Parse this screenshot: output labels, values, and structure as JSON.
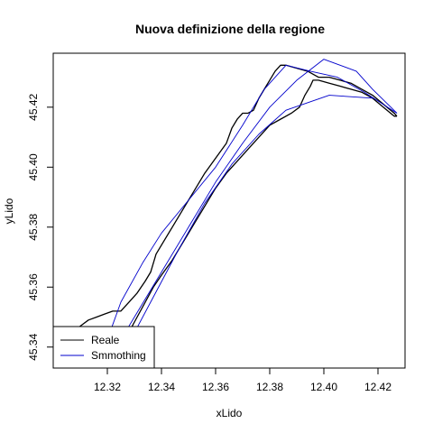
{
  "chart_data": {
    "type": "line",
    "title": "Nuova definizione della regione",
    "xlabel": "xLido",
    "ylabel": "yLido",
    "xlim": [
      12.3,
      12.43
    ],
    "ylim": [
      45.333,
      45.438
    ],
    "x_ticks": [
      12.32,
      12.34,
      12.36,
      12.38,
      12.4,
      12.42
    ],
    "x_tick_labels": [
      "12.32",
      "12.34",
      "12.36",
      "12.38",
      "12.40",
      "12.42"
    ],
    "y_ticks": [
      45.34,
      45.36,
      45.38,
      45.4,
      45.42
    ],
    "y_tick_labels": [
      "45.34",
      "45.36",
      "45.38",
      "45.40",
      "45.42"
    ],
    "grid": false,
    "legend_position": "bottom-left",
    "series": [
      {
        "name": "Reale",
        "color": "#000000",
        "segments": [
          {
            "x": [
              12.3,
              12.305,
              12.31,
              12.313,
              12.316,
              12.319,
              12.322,
              12.325,
              12.328,
              12.331,
              12.334,
              12.336,
              12.338,
              12.34,
              12.344,
              12.348,
              12.352,
              12.356,
              12.36,
              12.364,
              12.366,
              12.368,
              12.37,
              12.372,
              12.374,
              12.376,
              12.378,
              12.38,
              12.382,
              12.384,
              12.386,
              12.39,
              12.394,
              12.398,
              12.402,
              12.406,
              12.41,
              12.414,
              12.418,
              12.422,
              12.426,
              12.427
            ],
            "y": [
              45.34,
              45.343,
              45.347,
              45.349,
              45.35,
              45.351,
              45.352,
              45.352,
              45.355,
              45.358,
              45.362,
              45.365,
              45.371,
              45.374,
              45.38,
              45.386,
              45.392,
              45.398,
              45.403,
              45.408,
              45.413,
              45.416,
              45.418,
              45.418,
              45.419,
              45.423,
              45.426,
              45.429,
              45.432,
              45.434,
              45.434,
              45.433,
              45.432,
              45.43,
              45.43,
              45.429,
              45.428,
              45.426,
              45.424,
              45.421,
              45.418,
              45.417
            ]
          },
          {
            "x": [
              12.325,
              12.326,
              12.327,
              12.328,
              12.331,
              12.334,
              12.337,
              12.34,
              12.344,
              12.348,
              12.352,
              12.356,
              12.36,
              12.364,
              12.368,
              12.372,
              12.376,
              12.38,
              12.384,
              12.388,
              12.391,
              12.393,
              12.395,
              12.396,
              12.398,
              12.402,
              12.406,
              12.41,
              12.414,
              12.418,
              12.422,
              12.426,
              12.427
            ],
            "y": [
              45.335,
              45.338,
              45.342,
              45.345,
              45.35,
              45.355,
              45.36,
              45.364,
              45.369,
              45.375,
              45.381,
              45.387,
              45.393,
              45.398,
              45.402,
              45.406,
              45.41,
              45.414,
              45.416,
              45.418,
              45.42,
              45.424,
              45.427,
              45.429,
              45.429,
              45.428,
              45.427,
              45.426,
              45.425,
              45.423,
              45.42,
              45.417,
              45.417
            ]
          }
        ]
      },
      {
        "name": "Smmothing",
        "color": "#0000cc",
        "segments": [
          {
            "x": [
              12.317,
              12.325,
              12.333,
              12.34,
              12.35,
              12.36,
              12.37,
              12.378,
              12.386,
              12.395,
              12.405,
              12.415,
              12.427
            ],
            "y": [
              45.335,
              45.355,
              45.368,
              45.378,
              45.389,
              45.4,
              45.414,
              45.426,
              45.434,
              45.432,
              45.43,
              45.425,
              45.418
            ]
          },
          {
            "x": [
              12.32,
              12.33,
              12.34,
              12.35,
              12.36,
              12.37,
              12.38,
              12.39,
              12.4,
              12.412,
              12.418,
              12.427
            ],
            "y": [
              45.335,
              45.35,
              45.365,
              45.38,
              45.395,
              45.408,
              45.42,
              45.429,
              45.436,
              45.432,
              45.426,
              45.418
            ]
          },
          {
            "x": [
              12.326,
              12.336,
              12.346,
              12.356,
              12.366,
              12.376,
              12.386,
              12.402,
              12.418
            ],
            "y": [
              45.338,
              45.355,
              45.372,
              45.388,
              45.401,
              45.411,
              45.419,
              45.424,
              45.423
            ]
          }
        ]
      }
    ]
  }
}
